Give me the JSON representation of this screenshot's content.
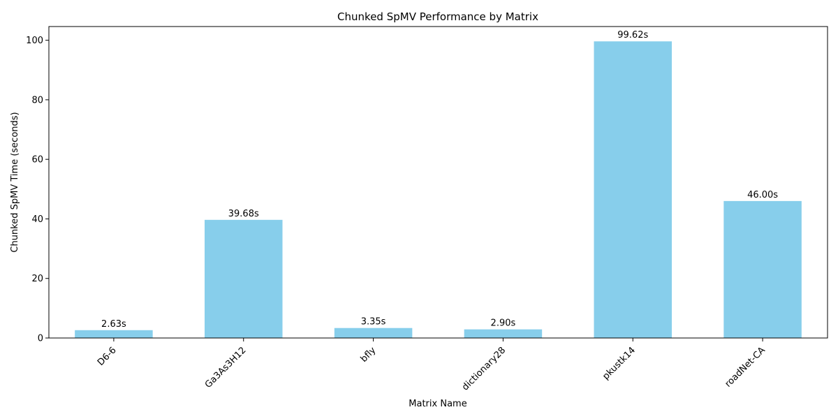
{
  "chart_data": {
    "type": "bar",
    "title": "Chunked SpMV Performance by Matrix",
    "xlabel": "Matrix Name",
    "ylabel": "Chunked SpMV Time (seconds)",
    "categories": [
      "D6-6",
      "Ga3As3H12",
      "bfly",
      "dictionary28",
      "pkustk14",
      "roadNet-CA"
    ],
    "values": [
      2.63,
      39.68,
      3.35,
      2.9,
      99.62,
      46.0
    ],
    "data_labels": [
      "2.63s",
      "39.68s",
      "3.35s",
      "2.90s",
      "99.62s",
      "46.00s"
    ],
    "ylim": [
      0,
      104.6
    ],
    "yticks": [
      0,
      20,
      40,
      60,
      80,
      100
    ],
    "ytick_labels": [
      "0",
      "20",
      "40",
      "60",
      "80",
      "100"
    ],
    "bar_color": "#87CEEB",
    "grid": false,
    "legend": "none"
  }
}
